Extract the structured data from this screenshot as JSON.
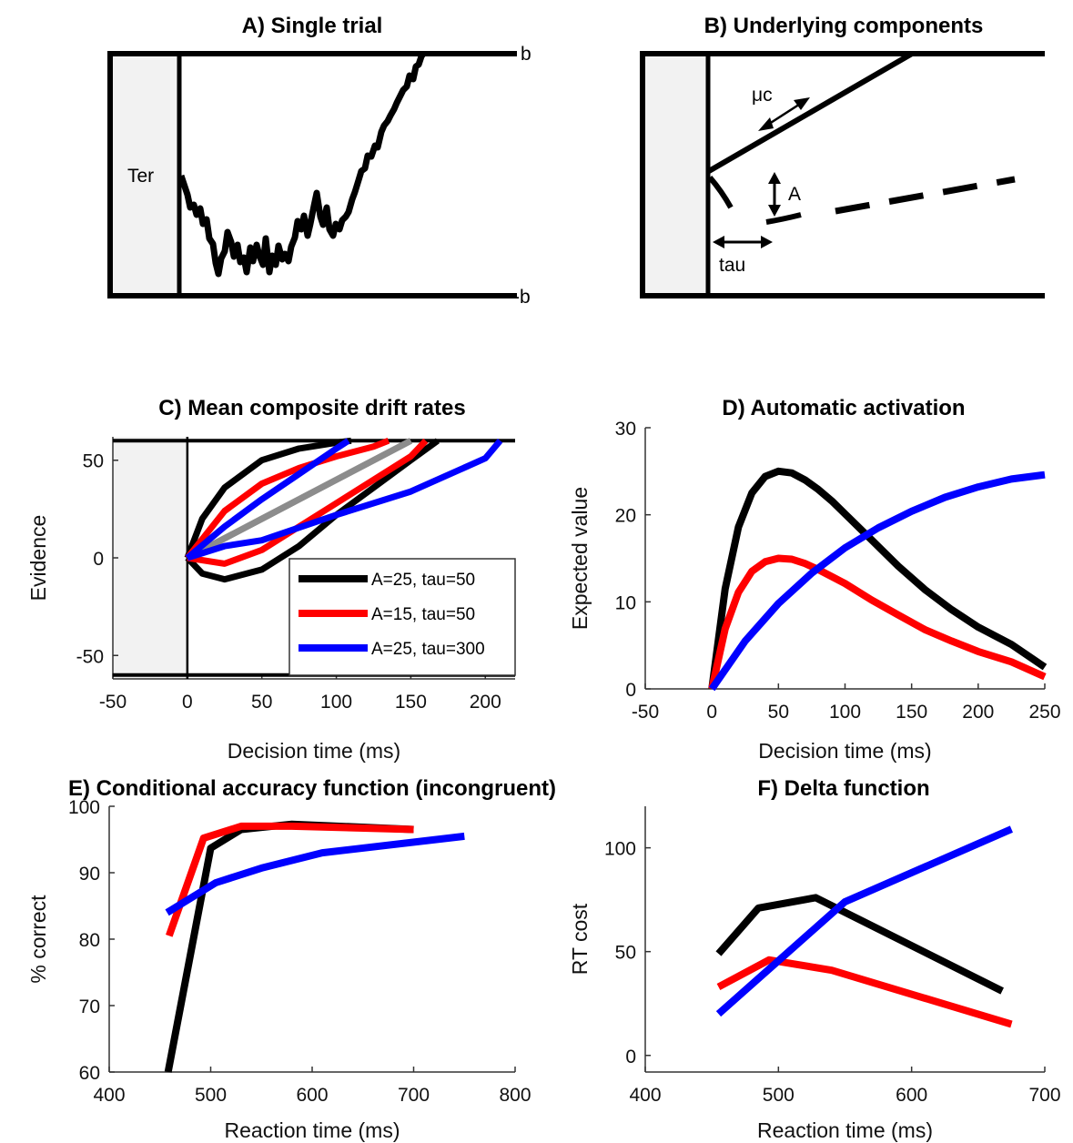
{
  "panels": {
    "a": {
      "title": "A) Single trial",
      "ter_label": "Ter",
      "upper_label": "b",
      "lower_label": "-b"
    },
    "b": {
      "title": "B) Underlying components",
      "mu_label": "μc",
      "amp_label": "A",
      "tau_label": "tau"
    }
  },
  "chart_data": [
    {
      "id": "C",
      "type": "line",
      "title": "C) Mean composite drift rates",
      "xlabel": "Decision time (ms)",
      "ylabel": "Evidence",
      "xlim": [
        -50,
        220
      ],
      "ylim": [
        -62,
        62
      ],
      "xticks": [
        -50,
        0,
        50,
        100,
        150,
        200
      ],
      "yticks": [
        -50,
        0,
        50
      ],
      "bounds": [
        60,
        -60
      ],
      "legend_position": "lower-right",
      "series": [
        {
          "name": "A=25, tau=50",
          "color": "#000000",
          "upper": {
            "x": [
              0,
              10,
              25,
              50,
              75,
              100,
              110
            ],
            "y": [
              0,
              20,
              36,
              50,
              56,
              59,
              60
            ]
          },
          "lower": {
            "x": [
              0,
              10,
              25,
              50,
              75,
              100,
              125,
              150,
              168
            ],
            "y": [
              0,
              -8,
              -11,
              -6,
              6,
              22,
              36,
              50,
              60
            ]
          }
        },
        {
          "name": "A=15, tau=50",
          "color": "#ff0000",
          "upper": {
            "x": [
              0,
              25,
              50,
              75,
              100,
              125,
              135
            ],
            "y": [
              0,
              24,
              38,
              46,
              52,
              57,
              60
            ]
          },
          "lower": {
            "x": [
              0,
              25,
              50,
              75,
              100,
              125,
              150,
              160
            ],
            "y": [
              0,
              -3,
              4,
              16,
              28,
              40,
              52,
              60
            ]
          }
        },
        {
          "name": "A=25, tau=300",
          "color": "#0000ff",
          "upper": {
            "x": [
              0,
              25,
              50,
              75,
              100,
              108
            ],
            "y": [
              0,
              16,
              30,
              43,
              56,
              60
            ]
          },
          "lower": {
            "x": [
              0,
              25,
              50,
              100,
              150,
              200,
              210
            ],
            "y": [
              0,
              6,
              9,
              22,
              34,
              51,
              60
            ]
          }
        },
        {
          "name": "",
          "color": "#8c8c8c",
          "upper": {
            "x": [
              0,
              50,
              100,
              150
            ],
            "y": [
              0,
              20,
              40,
              60
            ]
          },
          "lower": {
            "x": [
              0,
              50,
              100,
              150
            ],
            "y": [
              0,
              20,
              40,
              60
            ]
          }
        }
      ]
    },
    {
      "id": "D",
      "type": "line",
      "title": "D) Automatic activation",
      "xlabel": "Decision time (ms)",
      "ylabel": "Expected value",
      "xlim": [
        -50,
        250
      ],
      "ylim": [
        0,
        30
      ],
      "xticks": [
        -50,
        0,
        50,
        100,
        150,
        200,
        250
      ],
      "yticks": [
        0,
        10,
        20,
        30
      ],
      "series": [
        {
          "name": "A=25, tau=50",
          "color": "#000000",
          "x": [
            0,
            10,
            20,
            30,
            40,
            50,
            60,
            70,
            80,
            90,
            100,
            120,
            140,
            160,
            180,
            200,
            225,
            250
          ],
          "y": [
            0,
            11.5,
            18.6,
            22.5,
            24.4,
            25,
            24.8,
            24,
            22.9,
            21.6,
            20.1,
            17.1,
            14.1,
            11.4,
            9.1,
            7.1,
            5.1,
            2.5
          ]
        },
        {
          "name": "A=15, tau=50",
          "color": "#ff0000",
          "x": [
            0,
            10,
            20,
            30,
            40,
            50,
            60,
            70,
            80,
            90,
            100,
            120,
            140,
            160,
            180,
            200,
            225,
            250
          ],
          "y": [
            0,
            6.9,
            11.1,
            13.5,
            14.6,
            15,
            14.9,
            14.4,
            13.7,
            12.9,
            12.1,
            10.2,
            8.5,
            6.8,
            5.5,
            4.3,
            3.1,
            1.4
          ]
        },
        {
          "name": "A=25, tau=300",
          "color": "#0000ff",
          "x": [
            0,
            25,
            50,
            75,
            100,
            125,
            150,
            175,
            200,
            225,
            250
          ],
          "y": [
            0,
            5.5,
            9.8,
            13.3,
            16.2,
            18.5,
            20.4,
            22,
            23.2,
            24.1,
            24.6
          ]
        }
      ]
    },
    {
      "id": "E",
      "type": "line",
      "title": "E) Conditional accuracy function (incongruent)",
      "xlabel": "Reaction time (ms)",
      "ylabel": "% correct",
      "xlim": [
        400,
        800
      ],
      "ylim": [
        60,
        100
      ],
      "xticks": [
        400,
        500,
        600,
        700,
        800
      ],
      "yticks": [
        60,
        70,
        80,
        90,
        100
      ],
      "series": [
        {
          "name": "A=25, tau=50",
          "color": "#000000",
          "x": [
            458,
            500,
            530,
            580,
            700
          ],
          "y": [
            60,
            93.7,
            96.5,
            97.3,
            96.5
          ]
        },
        {
          "name": "A=15, tau=50",
          "color": "#ff0000",
          "x": [
            459,
            493,
            530,
            580,
            700
          ],
          "y": [
            80.5,
            95.2,
            97,
            97,
            96.5
          ]
        },
        {
          "name": "A=25, tau=300",
          "color": "#0000ff",
          "x": [
            457,
            505,
            550,
            610,
            750
          ],
          "y": [
            84,
            88.5,
            90.7,
            93,
            95.5
          ]
        }
      ]
    },
    {
      "id": "F",
      "type": "line",
      "title": "F) Delta function",
      "xlabel": "Reaction time (ms)",
      "ylabel": "RT cost",
      "xlim": [
        400,
        700
      ],
      "ylim": [
        -8,
        120
      ],
      "xticks": [
        400,
        500,
        600,
        700
      ],
      "yticks": [
        0,
        50,
        100
      ],
      "series": [
        {
          "name": "A=25, tau=50",
          "color": "#000000",
          "x": [
            455,
            485,
            528,
            668
          ],
          "y": [
            49,
            71,
            76,
            31
          ]
        },
        {
          "name": "A=15, tau=50",
          "color": "#ff0000",
          "x": [
            455,
            493,
            540,
            675
          ],
          "y": [
            33,
            46,
            41,
            15
          ]
        },
        {
          "name": "A=25, tau=300",
          "color": "#0000ff",
          "x": [
            455,
            550,
            675
          ],
          "y": [
            20,
            74,
            109
          ]
        }
      ]
    }
  ]
}
